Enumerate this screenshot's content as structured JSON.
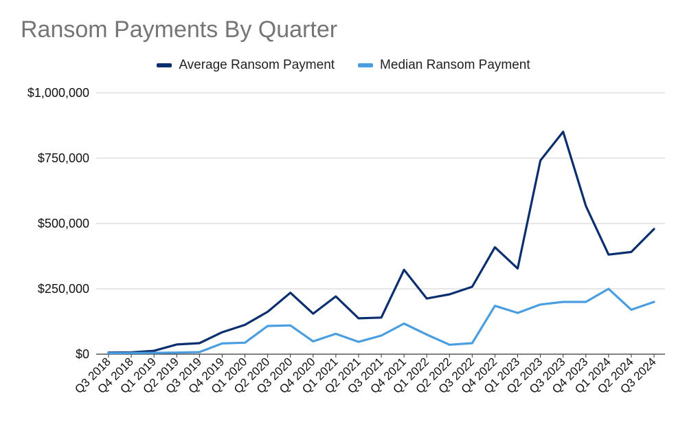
{
  "chart_data": {
    "type": "line",
    "title": "Ransom Payments By Quarter",
    "xlabel": "",
    "ylabel": "",
    "categories": [
      "Q3 2018",
      "Q4 2018",
      "Q1 2019",
      "Q2 2019",
      "Q3 2019",
      "Q4 2019",
      "Q1 2020",
      "Q2 2020",
      "Q3 2020",
      "Q4 2020",
      "Q1 2021",
      "Q2 2021",
      "Q3 2021",
      "Q4 2021",
      "Q1 2022",
      "Q2 2022",
      "Q3 2022",
      "Q4 2022",
      "Q1 2023",
      "Q2 2023",
      "Q3 2023",
      "Q4 2023",
      "Q1 2024",
      "Q2 2024",
      "Q3 2024"
    ],
    "series": [
      {
        "name": "Average Ransom Payment",
        "color": "#0b2f6e",
        "values": [
          6000,
          7000,
          13000,
          37000,
          42000,
          84000,
          112000,
          162000,
          235000,
          155000,
          221000,
          137000,
          140000,
          323000,
          213000,
          229000,
          258000,
          409000,
          328000,
          741000,
          851000,
          567000,
          381000,
          391000,
          479000
        ]
      },
      {
        "name": "Median Ransom Payment",
        "color": "#4a9ee0",
        "values": [
          4000,
          4500,
          5000,
          6000,
          8000,
          41000,
          44000,
          108000,
          110000,
          49000,
          78000,
          47000,
          71000,
          117000,
          75000,
          36000,
          42000,
          185000,
          158000,
          190000,
          200000,
          200000,
          250000,
          170000,
          200000
        ]
      }
    ],
    "ylim": [
      0,
      1000000
    ],
    "yticks": [
      0,
      250000,
      500000,
      750000,
      1000000
    ],
    "ytick_labels": [
      "$0",
      "$250,000",
      "$500,000",
      "$750,000",
      "$1,000,000"
    ],
    "grid": true,
    "legend_position": "top-center"
  }
}
